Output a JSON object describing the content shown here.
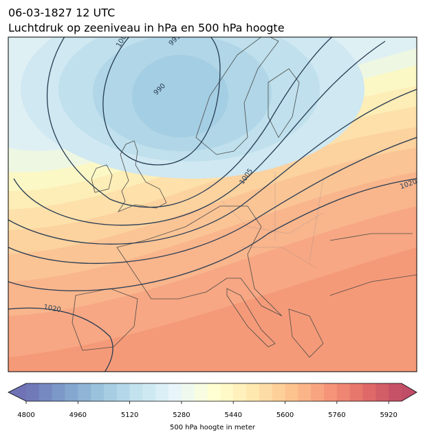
{
  "header": {
    "date": "06-03-1827 12 UTC",
    "title": "Luchtdruk op zeeniveau in hPa en 500 hPa hoogte"
  },
  "contour_labels": [
    "990",
    "995",
    "1000",
    "1005",
    "1020",
    "1020"
  ],
  "colorbar": {
    "lim": [
      4800,
      5960
    ],
    "step": 40,
    "ticks": [
      4800,
      4960,
      5120,
      5280,
      5440,
      5600,
      5760,
      5920
    ],
    "label": "500 hPa hoogte in meter"
  }
}
